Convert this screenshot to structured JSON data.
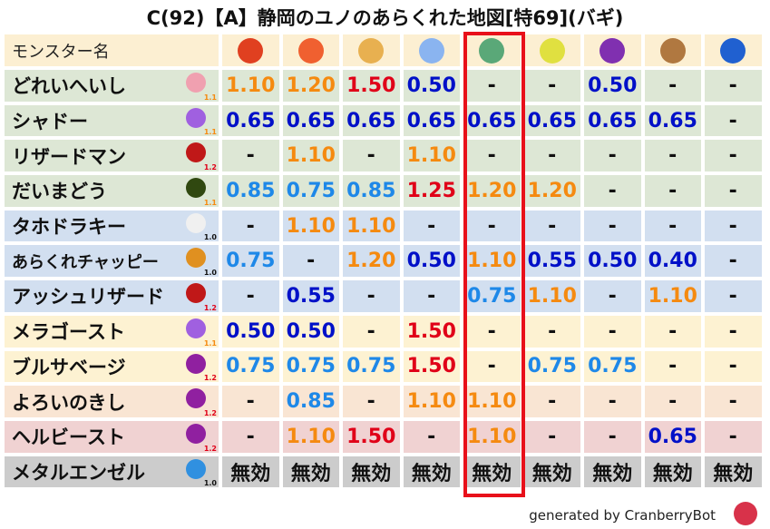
{
  "title": "C(92)【A】静岡のユノのあらくれた地図[特69](バギ)",
  "header": {
    "name_label": "モンスター名",
    "elements": [
      {
        "icon": "fireball-icon",
        "color": "#e04020"
      },
      {
        "icon": "flame-icon",
        "color": "#f06030"
      },
      {
        "icon": "explosion-icon",
        "color": "#e8b050"
      },
      {
        "icon": "ice-icon",
        "color": "#8ab4f0"
      },
      {
        "icon": "wind-icon",
        "color": "#5aa878"
      },
      {
        "icon": "lightning-icon",
        "color": "#e0e040"
      },
      {
        "icon": "darkness-icon",
        "color": "#8030b0"
      },
      {
        "icon": "earth-icon",
        "color": "#b07840"
      },
      {
        "icon": "water-icon",
        "color": "#2060d0"
      }
    ]
  },
  "highlight_column": 4,
  "colors": {
    "red": "#e00018",
    "orange": "#f58a10",
    "dark_blue": "#0010c8",
    "light_blue": "#1e88e8",
    "text": "#111111",
    "highlight": "#e8101a"
  },
  "rows": [
    {
      "name": "どれいへいし",
      "icon": "skull-icon",
      "icon_color": "#f0a0b0",
      "mult": "1.1",
      "mult_color": "#f58a10",
      "bg": "#dde7d5",
      "values": [
        "1.10",
        "1.20",
        "1.50",
        "0.50",
        "-",
        "-",
        "0.50",
        "-",
        "-"
      ]
    },
    {
      "name": "シャドー",
      "icon": "ghost-icon",
      "icon_color": "#a060e0",
      "mult": "1.1",
      "mult_color": "#f58a10",
      "bg": "#dde7d5",
      "values": [
        "0.65",
        "0.65",
        "0.65",
        "0.65",
        "0.65",
        "0.65",
        "0.65",
        "0.65",
        "-"
      ]
    },
    {
      "name": "リザードマン",
      "icon": "dragon-icon",
      "icon_color": "#c01818",
      "mult": "1.2",
      "mult_color": "#e00018",
      "bg": "#dde7d5",
      "values": [
        "-",
        "1.10",
        "-",
        "1.10",
        "-",
        "-",
        "-",
        "-",
        "-"
      ]
    },
    {
      "name": "だいまどう",
      "icon": "slime-icon",
      "icon_color": "#304810",
      "mult": "1.1",
      "mult_color": "#f58a10",
      "bg": "#dde7d5",
      "values": [
        "0.85",
        "0.75",
        "0.85",
        "1.25",
        "1.20",
        "1.20",
        "-",
        "-",
        "-"
      ]
    },
    {
      "name": "タホドラキー",
      "icon": "wing-icon",
      "icon_color": "#f0f0f0",
      "mult": "1.0",
      "mult_color": "#111111",
      "bg": "#d2dff0",
      "values": [
        "-",
        "1.10",
        "1.10",
        "-",
        "-",
        "-",
        "-",
        "-",
        "-"
      ]
    },
    {
      "name": "あらくれチャッピー",
      "icon": "paw-icon",
      "icon_color": "#e09020",
      "mult": "1.0",
      "mult_color": "#111111",
      "bg": "#d2dff0",
      "values": [
        "0.75",
        "-",
        "1.20",
        "0.50",
        "1.10",
        "0.55",
        "0.50",
        "0.40",
        "-"
      ]
    },
    {
      "name": "アッシュリザード",
      "icon": "dragon-icon",
      "icon_color": "#c01818",
      "mult": "1.2",
      "mult_color": "#e00018",
      "bg": "#d2dff0",
      "values": [
        "-",
        "0.55",
        "-",
        "-",
        "0.75",
        "1.10",
        "-",
        "1.10",
        "-"
      ]
    },
    {
      "name": "メラゴースト",
      "icon": "ghost-icon",
      "icon_color": "#a060e0",
      "mult": "1.1",
      "mult_color": "#f58a10",
      "bg": "#fdf2d2",
      "values": [
        "0.50",
        "0.50",
        "-",
        "1.50",
        "-",
        "-",
        "-",
        "-",
        "-"
      ]
    },
    {
      "name": "ブルサベージ",
      "icon": "trident-icon",
      "icon_color": "#9020a0",
      "mult": "1.2",
      "mult_color": "#e00018",
      "bg": "#fdf2d2",
      "values": [
        "0.75",
        "0.75",
        "0.75",
        "1.50",
        "-",
        "0.75",
        "0.75",
        "-",
        "-"
      ]
    },
    {
      "name": "よろいのきし",
      "icon": "trident-icon",
      "icon_color": "#9020a0",
      "mult": "1.2",
      "mult_color": "#e00018",
      "bg": "#f9e5d3",
      "values": [
        "-",
        "0.85",
        "-",
        "1.10",
        "1.10",
        "-",
        "-",
        "-",
        "-"
      ]
    },
    {
      "name": "ヘルビースト",
      "icon": "trident-icon",
      "icon_color": "#9020a0",
      "mult": "1.2",
      "mult_color": "#e00018",
      "bg": "#f0d2d2",
      "values": [
        "-",
        "1.10",
        "1.50",
        "-",
        "1.10",
        "-",
        "-",
        "0.65",
        "-"
      ]
    },
    {
      "name": "メタルエンゼル",
      "icon": "metal-slime-icon",
      "icon_color": "#3090e0",
      "mult": "1.0",
      "mult_color": "#111111",
      "bg": "#cccccc",
      "values": [
        "無効",
        "無効",
        "無効",
        "無効",
        "無効",
        "無効",
        "無効",
        "無効",
        "無効"
      ]
    }
  ],
  "footer": {
    "text": "generated by CranberryBot",
    "icon": "cranberry-bot-icon"
  }
}
